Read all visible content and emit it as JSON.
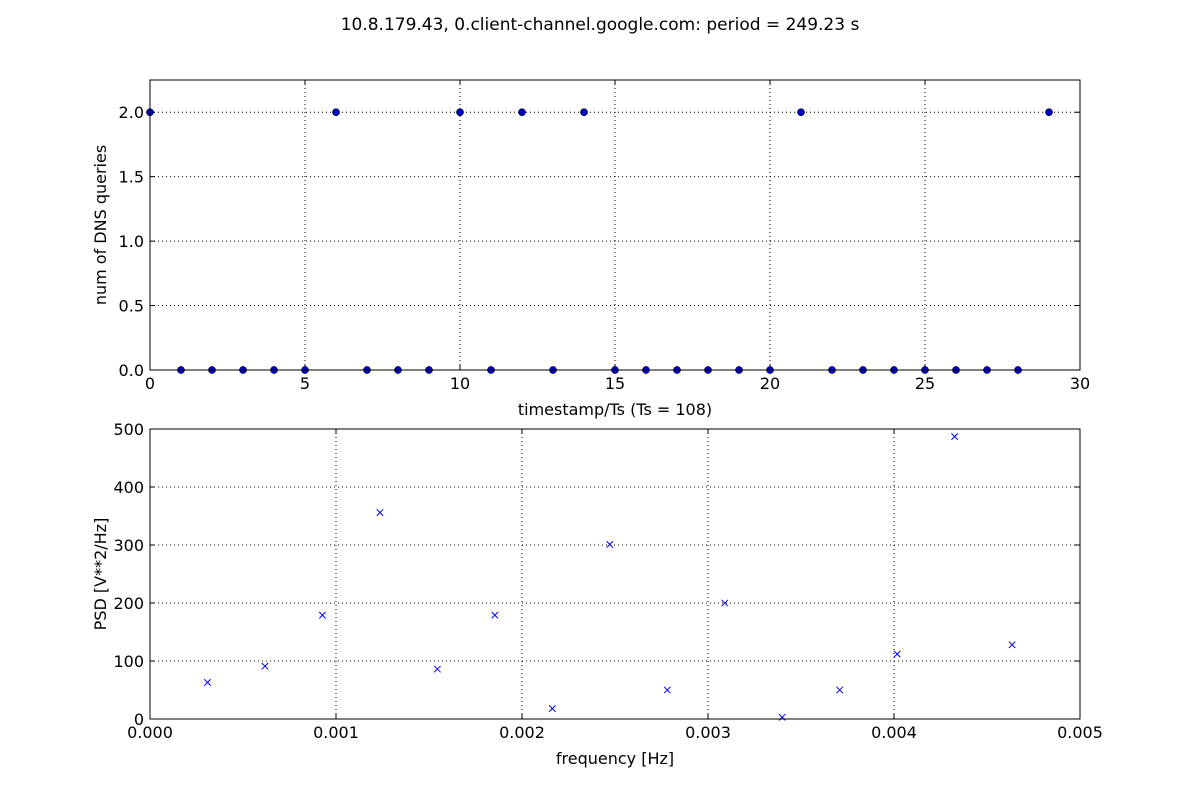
{
  "figure": {
    "title": "10.8.179.43, 0.client-channel.google.com: period = 249.23 s"
  },
  "chart_data": [
    {
      "type": "scatter",
      "title": "",
      "xlabel": "timestamp/Ts (Ts = 108)",
      "ylabel": "num of DNS queries",
      "xlim": [
        0,
        30
      ],
      "ylim": [
        0,
        2.25
      ],
      "xticks": [
        0,
        5,
        10,
        15,
        20,
        25,
        30
      ],
      "xtick_labels": [
        "0",
        "5",
        "10",
        "15",
        "20",
        "25",
        "30"
      ],
      "yticks": [
        0,
        0.5,
        1,
        1.5,
        2
      ],
      "ytick_labels": [
        "0.0",
        "0.5",
        "1.0",
        "1.5",
        "2.0"
      ],
      "grid": true,
      "marker": "circle",
      "color": "#0000bf",
      "x": [
        0,
        1,
        2,
        3,
        4,
        5,
        6,
        7,
        8,
        9,
        10,
        11,
        12,
        13,
        14,
        15,
        16,
        17,
        18,
        19,
        20,
        21,
        22,
        23,
        24,
        25,
        26,
        27,
        28,
        29
      ],
      "y": [
        2,
        0,
        0,
        0,
        0,
        0,
        2,
        0,
        0,
        0,
        2,
        0,
        2,
        0,
        2,
        0,
        0,
        0,
        0,
        0,
        0,
        2,
        0,
        0,
        0,
        0,
        0,
        0,
        0,
        2
      ]
    },
    {
      "type": "scatter",
      "title": "",
      "xlabel": "frequency [Hz]",
      "ylabel": "PSD [V**2/Hz]",
      "xlim": [
        0,
        0.005
      ],
      "ylim": [
        0,
        500
      ],
      "xticks": [
        0,
        0.001,
        0.002,
        0.003,
        0.004,
        0.005
      ],
      "xtick_labels": [
        "0.000",
        "0.001",
        "0.002",
        "0.003",
        "0.004",
        "0.005"
      ],
      "yticks": [
        0,
        100,
        200,
        300,
        400,
        500
      ],
      "ytick_labels": [
        "0",
        "100",
        "200",
        "300",
        "400",
        "500"
      ],
      "grid": true,
      "marker": "x",
      "color": "#0000ff",
      "x": [
        0.000309,
        0.000618,
        0.000927,
        0.001236,
        0.001545,
        0.001854,
        0.002163,
        0.002472,
        0.002781,
        0.00309,
        0.003399,
        0.003708,
        0.004017,
        0.004326,
        0.004635
      ],
      "y": [
        63,
        91,
        179,
        356,
        86,
        179,
        18,
        301,
        50,
        200,
        3,
        50,
        112,
        487,
        128
      ]
    }
  ]
}
